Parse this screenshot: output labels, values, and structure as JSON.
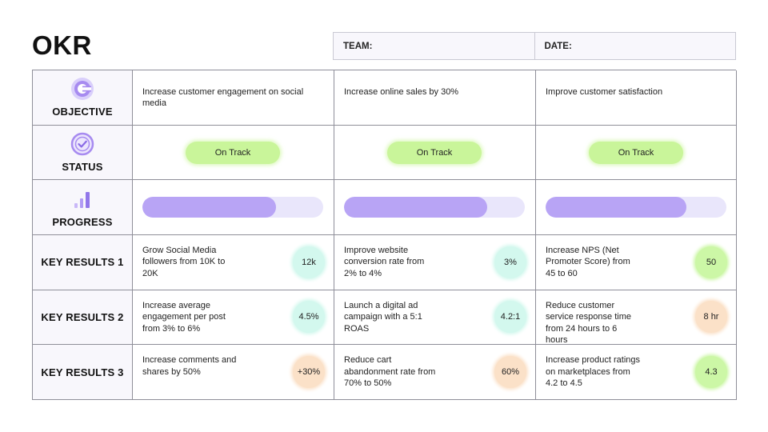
{
  "title": "OKR",
  "meta": {
    "team_label": "TEAM:",
    "date_label": "DATE:"
  },
  "colors": {
    "status_green": "#c9f59a",
    "progress_fill": "#b8a4f5",
    "progress_track": "#e9e6fb",
    "badge_teal": "#d3f8ee",
    "badge_green": "#ccf7a6",
    "badge_peach": "#fbe1c8"
  },
  "rows": {
    "objective": "OBJECTIVE",
    "status": "STATUS",
    "progress": "PROGRESS",
    "kr1": "KEY RESULTS 1",
    "kr2": "KEY RESULTS 2",
    "kr3": "KEY RESULTS 3"
  },
  "columns": [
    {
      "objective": "Increase customer engagement on social media",
      "status": "On Track",
      "progress": 0.74,
      "kr1": {
        "text": "Grow Social Media followers from 10K to 20K",
        "value": "12k",
        "color": "#d3f8ee"
      },
      "kr2": {
        "text": "Increase average engagement per post from 3% to 6%",
        "value": "4.5%",
        "color": "#d3f8ee"
      },
      "kr3": {
        "text": "Increase comments and shares by 50%",
        "value": "+30%",
        "color": "#fbe1c8"
      }
    },
    {
      "objective": "Increase online sales by 30%",
      "status": "On Track",
      "progress": 0.79,
      "kr1": {
        "text": "Improve website conversion rate from 2% to 4%",
        "value": "3%",
        "color": "#d3f8ee"
      },
      "kr2": {
        "text": "Launch a digital ad campaign with a 5:1 ROAS",
        "value": "4.2:1",
        "color": "#d3f8ee"
      },
      "kr3": {
        "text": "Reduce cart abandonment rate from 70% to 50%",
        "value": "60%",
        "color": "#fbe1c8"
      }
    },
    {
      "objective": "Improve customer satisfaction",
      "status": "On Track",
      "progress": 0.78,
      "kr1": {
        "text": "Increase NPS (Net Promoter Score) from 45 to 60",
        "value": "50",
        "color": "#ccf7a6"
      },
      "kr2": {
        "text": "Reduce customer service response time from 24 hours to 6 hours",
        "value": "8 hr",
        "color": "#fbe1c8"
      },
      "kr3": {
        "text": "Increase product ratings on marketplaces from 4.2 to 4.5",
        "value": "4.3",
        "color": "#ccf7a6"
      }
    }
  ]
}
